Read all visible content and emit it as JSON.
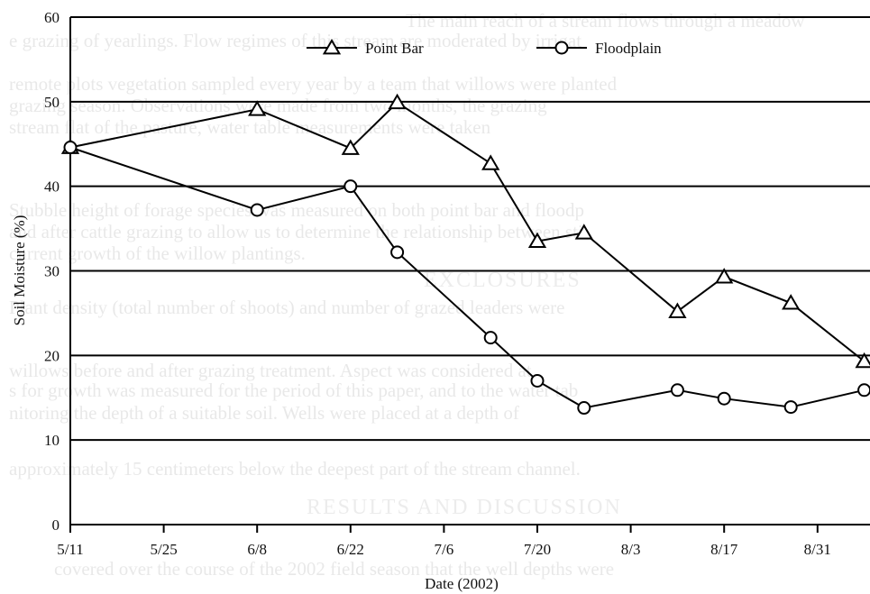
{
  "chart_data": {
    "type": "line",
    "title": "",
    "xlabel": "Date (2002)",
    "ylabel": "Soil Moisture (%)",
    "xticks": [
      "5/11",
      "5/25",
      "6/8",
      "6/22",
      "7/6",
      "7/20",
      "8/3",
      "8/17",
      "8/31"
    ],
    "ylim": [
      0,
      60
    ],
    "yticks": [
      0,
      10,
      20,
      30,
      40,
      50,
      60
    ],
    "grid": "horizontal",
    "legend_position": "top",
    "series": [
      {
        "name": "Point Bar",
        "marker": "triangle",
        "points": [
          {
            "x": "5/11",
            "y": 44.6
          },
          {
            "x": "6/8",
            "y": 49.1
          },
          {
            "x": "6/22",
            "y": 44.5
          },
          {
            "x": "6/29",
            "y": 49.9
          },
          {
            "x": "7/13",
            "y": 42.7
          },
          {
            "x": "7/20",
            "y": 33.5
          },
          {
            "x": "7/27",
            "y": 34.5
          },
          {
            "x": "8/10",
            "y": 25.2
          },
          {
            "x": "8/17",
            "y": 29.3
          },
          {
            "x": "8/27",
            "y": 26.2
          },
          {
            "x": "9/7",
            "y": 19.3
          }
        ]
      },
      {
        "name": "Floodplain",
        "marker": "circle",
        "points": [
          {
            "x": "5/11",
            "y": 44.6
          },
          {
            "x": "6/8",
            "y": 37.2
          },
          {
            "x": "6/22",
            "y": 40.0
          },
          {
            "x": "6/29",
            "y": 32.2
          },
          {
            "x": "7/13",
            "y": 22.1
          },
          {
            "x": "7/20",
            "y": 17.0
          },
          {
            "x": "7/27",
            "y": 13.8
          },
          {
            "x": "8/10",
            "y": 15.9
          },
          {
            "x": "8/17",
            "y": 14.9
          },
          {
            "x": "8/27",
            "y": 13.9
          },
          {
            "x": "9/7",
            "y": 15.9
          }
        ]
      }
    ]
  }
}
